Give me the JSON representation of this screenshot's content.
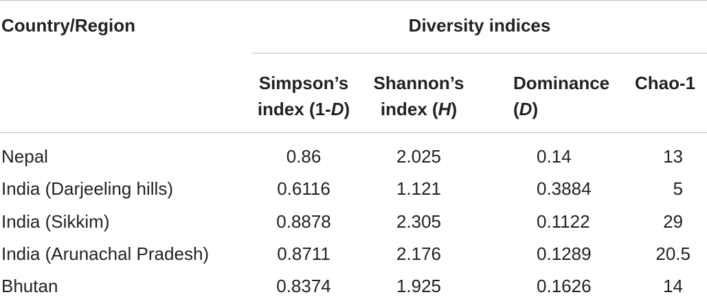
{
  "table": {
    "header": {
      "country_label": "Country/Region",
      "group_label": "Diversity indices",
      "columns": [
        {
          "line1": "Simpson’s",
          "line2_pre": "index (1-",
          "line2_ital": "D",
          "line2_post": ")"
        },
        {
          "line1": "Shannon’s",
          "line2_pre": "index (",
          "line2_ital": "H",
          "line2_post": ")"
        },
        {
          "line1": "Dominance",
          "line2_pre": "(",
          "line2_ital": "D",
          "line2_post": ")"
        },
        {
          "line1": "Chao-1",
          "line2_pre": "",
          "line2_ital": "",
          "line2_post": ""
        }
      ]
    },
    "rows": [
      {
        "region": "Nepal",
        "simpson": "0.86",
        "shannon": "2.025",
        "dominance": "0.14",
        "chao": "13"
      },
      {
        "region": "India (Darjeeling hills)",
        "simpson": "0.6116",
        "shannon": "1.121",
        "dominance": "0.3884",
        "chao": "5"
      },
      {
        "region": "India (Sikkim)",
        "simpson": "0.8878",
        "shannon": "2.305",
        "dominance": "0.1122",
        "chao": "29"
      },
      {
        "region": "India (Arunachal Pradesh)",
        "simpson": "0.8711",
        "shannon": "2.176",
        "dominance": "0.1289",
        "chao": "20.5"
      },
      {
        "region": "Bhutan",
        "simpson": "0.8374",
        "shannon": "1.925",
        "dominance": "0.1626",
        "chao": "14"
      }
    ]
  }
}
